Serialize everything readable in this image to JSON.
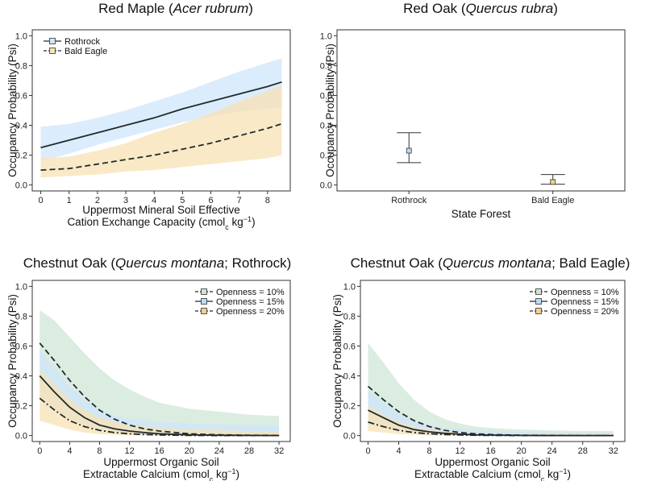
{
  "colors": {
    "rothrock_band": "#cfe6fb",
    "baldeagle_band": "#f8e2b4",
    "open10_band": "#cfe5d6",
    "open15_band": "#cfe6fb",
    "open20_band": "#f8e2b4",
    "open10_marker": "#cfe5d6",
    "open15_marker": "#bcdcf5",
    "open20_marker": "#f1d090",
    "line": "#1f2a2e"
  },
  "chart_data": [
    {
      "id": "red-maple",
      "type": "line",
      "title_parts": [
        "Red Maple (",
        "Acer rubrum",
        ")"
      ],
      "xlabel_lines": [
        "Uppermost Mineral Soil Effective",
        "Cation Exchange Capacity (cmol",
        "c",
        " kg",
        "−1",
        ")"
      ],
      "ylabel": "Occupancy Probability (Psi)",
      "xlim": [
        -0.3,
        8.8
      ],
      "ylim": [
        -0.04,
        1.04
      ],
      "xticks": [
        0,
        1,
        2,
        3,
        4,
        5,
        6,
        7,
        8
      ],
      "yticks": [
        0.0,
        0.2,
        0.4,
        0.6,
        0.8,
        1.0
      ],
      "legend_position": "top-left",
      "x": [
        0,
        1,
        2,
        3,
        4,
        5,
        6,
        7,
        8,
        8.5
      ],
      "series": [
        {
          "name": "Rothrock",
          "style": "solid",
          "band": "rothrock_band",
          "values": [
            0.25,
            0.3,
            0.35,
            0.4,
            0.45,
            0.51,
            0.56,
            0.61,
            0.66,
            0.69
          ],
          "lower": [
            0.16,
            0.21,
            0.27,
            0.32,
            0.37,
            0.42,
            0.46,
            0.49,
            0.51,
            0.52
          ],
          "upper": [
            0.39,
            0.41,
            0.45,
            0.5,
            0.56,
            0.62,
            0.69,
            0.76,
            0.82,
            0.85
          ]
        },
        {
          "name": "Bald Eagle",
          "style": "dashed",
          "band": "baldeagle_band",
          "values": [
            0.1,
            0.11,
            0.14,
            0.17,
            0.2,
            0.24,
            0.28,
            0.33,
            0.38,
            0.41
          ],
          "lower": [
            0.05,
            0.06,
            0.07,
            0.09,
            0.1,
            0.12,
            0.14,
            0.16,
            0.18,
            0.2
          ],
          "upper": [
            0.18,
            0.19,
            0.23,
            0.28,
            0.35,
            0.41,
            0.48,
            0.56,
            0.63,
            0.67
          ]
        }
      ]
    },
    {
      "id": "red-oak",
      "type": "scatter",
      "title_parts": [
        "Red Oak (",
        "Quercus rubra",
        ")"
      ],
      "xlabel_lines": [
        "State Forest"
      ],
      "ylabel": "Occupancy Probability (Psi)",
      "ylim": [
        -0.04,
        1.04
      ],
      "yticks": [
        0.0,
        0.2,
        0.4,
        0.6,
        0.8,
        1.0
      ],
      "categories": [
        "Rothrock",
        "Bald Eagle"
      ],
      "values": [
        0.23,
        0.02
      ],
      "lower": [
        0.15,
        0.005
      ],
      "upper": [
        0.35,
        0.07
      ],
      "marker_colors": [
        "#bcdcf5",
        "#f1d090"
      ]
    },
    {
      "id": "chestnut-rothrock",
      "type": "line",
      "title_parts": [
        "Chestnut Oak (",
        "Quercus montana",
        "; Rothrock)"
      ],
      "xlabel_lines": [
        "Uppermost Organic Soil",
        "Extractable Calcium (cmol",
        "c",
        " kg",
        "−1",
        ")"
      ],
      "ylabel": "Occupancy Probability (Psi)",
      "xlim": [
        -1.0,
        33.5
      ],
      "ylim": [
        -0.04,
        1.04
      ],
      "xticks": [
        0,
        4,
        8,
        12,
        16,
        20,
        24,
        28,
        32
      ],
      "yticks": [
        0.0,
        0.2,
        0.4,
        0.6,
        0.8,
        1.0
      ],
      "legend_position": "top-right",
      "x": [
        0,
        2,
        4,
        6,
        8,
        10,
        12,
        14,
        16,
        20,
        24,
        28,
        32
      ],
      "series": [
        {
          "name": "Openness = 10%",
          "style": "dashed",
          "band": "open10_band",
          "values": [
            0.62,
            0.5,
            0.37,
            0.26,
            0.17,
            0.11,
            0.07,
            0.045,
            0.03,
            0.012,
            0.005,
            0.002,
            0.001
          ],
          "lower": [
            0.3,
            0.24,
            0.17,
            0.11,
            0.07,
            0.04,
            0.02,
            0.01,
            0.005,
            0.001,
            0.0,
            0.0,
            0.0
          ],
          "upper": [
            0.84,
            0.77,
            0.66,
            0.55,
            0.45,
            0.37,
            0.31,
            0.26,
            0.22,
            0.18,
            0.16,
            0.14,
            0.13
          ]
        },
        {
          "name": "Openness = 15%",
          "style": "solid",
          "band": "open15_band",
          "values": [
            0.4,
            0.29,
            0.19,
            0.12,
            0.07,
            0.045,
            0.03,
            0.02,
            0.012,
            0.005,
            0.002,
            0.001,
            0.0
          ],
          "lower": [
            0.25,
            0.18,
            0.11,
            0.07,
            0.04,
            0.02,
            0.01,
            0.005,
            0.003,
            0.001,
            0.0,
            0.0,
            0.0
          ],
          "upper": [
            0.57,
            0.45,
            0.33,
            0.24,
            0.17,
            0.13,
            0.11,
            0.1,
            0.09,
            0.08,
            0.075,
            0.07,
            0.07
          ]
        },
        {
          "name": "Openness = 20%",
          "style": "dashdot",
          "band": "open20_band",
          "values": [
            0.25,
            0.17,
            0.1,
            0.06,
            0.035,
            0.02,
            0.012,
            0.007,
            0.004,
            0.001,
            0.0,
            0.0,
            0.0
          ],
          "lower": [
            0.1,
            0.07,
            0.04,
            0.02,
            0.01,
            0.005,
            0.002,
            0.001,
            0.0,
            0.0,
            0.0,
            0.0,
            0.0
          ],
          "upper": [
            0.44,
            0.34,
            0.24,
            0.17,
            0.12,
            0.09,
            0.07,
            0.06,
            0.05,
            0.04,
            0.035,
            0.03,
            0.03
          ]
        }
      ]
    },
    {
      "id": "chestnut-baldeagle",
      "type": "line",
      "title_parts": [
        "Chestnut Oak (",
        "Quercus montana",
        "; Bald Eagle)"
      ],
      "xlabel_lines": [
        "Uppermost Organic Soil",
        "Extractable Calcium (cmol",
        "c",
        " kg",
        "−1",
        ")"
      ],
      "ylabel": "Occupancy Probability (Psi)",
      "xlim": [
        -1.0,
        33.5
      ],
      "ylim": [
        -0.04,
        1.04
      ],
      "xticks": [
        0,
        4,
        8,
        12,
        16,
        20,
        24,
        28,
        32
      ],
      "yticks": [
        0.0,
        0.2,
        0.4,
        0.6,
        0.8,
        1.0
      ],
      "legend_position": "top-right",
      "x": [
        0,
        2,
        4,
        6,
        8,
        10,
        12,
        14,
        16,
        20,
        24,
        28,
        32
      ],
      "series": [
        {
          "name": "Openness = 10%",
          "style": "dashed",
          "band": "open10_band",
          "values": [
            0.33,
            0.24,
            0.16,
            0.1,
            0.06,
            0.035,
            0.02,
            0.012,
            0.007,
            0.002,
            0.001,
            0.0,
            0.0
          ],
          "lower": [
            0.1,
            0.07,
            0.04,
            0.02,
            0.01,
            0.005,
            0.002,
            0.001,
            0.0,
            0.0,
            0.0,
            0.0,
            0.0
          ],
          "upper": [
            0.62,
            0.49,
            0.35,
            0.24,
            0.16,
            0.11,
            0.08,
            0.06,
            0.05,
            0.04,
            0.035,
            0.03,
            0.03
          ]
        },
        {
          "name": "Openness = 15%",
          "style": "solid",
          "band": "open15_band",
          "values": [
            0.17,
            0.12,
            0.07,
            0.04,
            0.025,
            0.015,
            0.009,
            0.005,
            0.003,
            0.001,
            0.0,
            0.0,
            0.0
          ],
          "lower": [
            0.07,
            0.05,
            0.03,
            0.015,
            0.008,
            0.004,
            0.002,
            0.001,
            0.0,
            0.0,
            0.0,
            0.0,
            0.0
          ],
          "upper": [
            0.3,
            0.22,
            0.15,
            0.1,
            0.07,
            0.05,
            0.04,
            0.035,
            0.03,
            0.025,
            0.02,
            0.02,
            0.02
          ]
        },
        {
          "name": "Openness = 20%",
          "style": "dashdot",
          "band": "open20_band",
          "values": [
            0.09,
            0.06,
            0.035,
            0.02,
            0.012,
            0.007,
            0.004,
            0.002,
            0.001,
            0.0,
            0.0,
            0.0,
            0.0
          ],
          "lower": [
            0.03,
            0.02,
            0.01,
            0.005,
            0.002,
            0.001,
            0.0,
            0.0,
            0.0,
            0.0,
            0.0,
            0.0,
            0.0
          ],
          "upper": [
            0.2,
            0.14,
            0.09,
            0.06,
            0.04,
            0.03,
            0.02,
            0.015,
            0.012,
            0.01,
            0.01,
            0.01,
            0.01
          ]
        }
      ]
    }
  ]
}
